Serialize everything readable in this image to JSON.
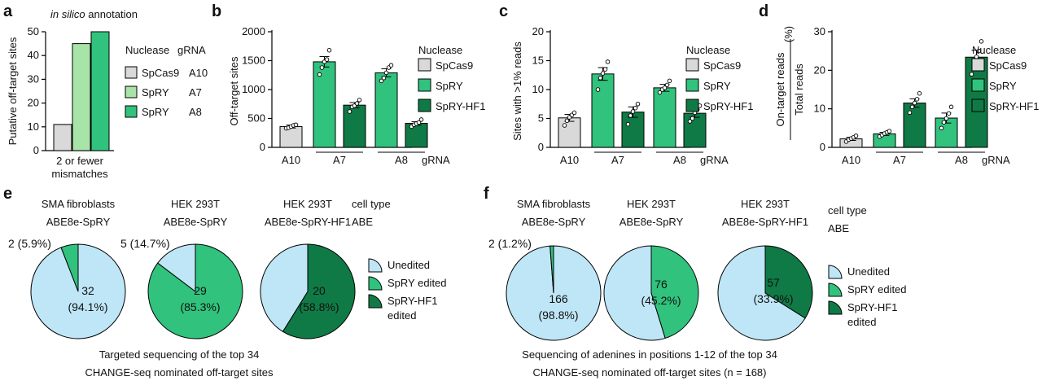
{
  "colors": {
    "spcas9": "#d9d9d9",
    "spry": "#31c27d",
    "spry_light": "#a8e3a8",
    "sprhf1": "#0f7a45",
    "unedited": "#bfe6f7",
    "axis": "#000000"
  },
  "panels": {
    "a": {
      "letter": "a",
      "subtitle_italic": "in silico",
      "subtitle_rest": " annotation",
      "legend_header": [
        "Nuclease",
        "gRNA"
      ],
      "legend_rows": [
        {
          "nuclease": "SpCas9",
          "grna": "A10"
        },
        {
          "nuclease": "SpRY",
          "grna": "A7"
        },
        {
          "nuclease": "SpRY",
          "grna": "A8"
        }
      ]
    },
    "b": {
      "letter": "b",
      "legend_header": "Nuclease",
      "legend": [
        "SpCas9",
        "SpRY",
        "SpRY-HF1"
      ]
    },
    "c": {
      "letter": "c",
      "legend_header": "Nuclease",
      "legend": [
        "SpCas9",
        "SpRY",
        "SpRY-HF1"
      ]
    },
    "d": {
      "letter": "d",
      "legend_header": "Nuclease",
      "legend": [
        "SpCas9",
        "SpRY",
        "SpRY-HF1"
      ]
    },
    "e": {
      "letter": "e",
      "headers": [
        [
          "SMA fibroblasts",
          "ABE8e-SpRY"
        ],
        [
          "HEK 293T",
          "ABE8e-SpRY"
        ],
        [
          "HEK 293T",
          "ABE8e-SpRY-HF1"
        ]
      ],
      "row_labels": [
        "cell type",
        "ABE"
      ],
      "legend": [
        "Unedited",
        "SpRY edited",
        "SpRY-HF1",
        "edited"
      ],
      "caption": [
        "Targeted sequencing of the top 34",
        "CHANGE-seq nominated off-target sites"
      ]
    },
    "f": {
      "letter": "f",
      "headers": [
        [
          "SMA fibroblasts",
          "ABE8e-SpRY"
        ],
        [
          "HEK 293T",
          "ABE8e-SpRY"
        ],
        [
          "HEK 293T",
          "ABE8e-SpRY-HF1"
        ]
      ],
      "row_labels": [
        "cell type",
        "ABE"
      ],
      "legend": [
        "Unedited",
        "SpRY edited",
        "SpRY-HF1",
        "edited"
      ],
      "caption": [
        "Sequencing of adenines in positions 1-12 of the top 34",
        "CHANGE-seq nominated off-target sites (n = 168)"
      ]
    }
  },
  "chart_data": [
    {
      "panel": "a",
      "type": "bar",
      "ylabel": "Putative off-target sites",
      "ylim": [
        0,
        50
      ],
      "yticks": [
        0,
        10,
        20,
        30,
        40,
        50
      ],
      "xlabel_lines": [
        "2 or fewer",
        "mismatches"
      ],
      "series": [
        {
          "name": "SpCas9 A10",
          "values": [
            11
          ]
        },
        {
          "name": "SpRY A7",
          "values": [
            45
          ]
        },
        {
          "name": "SpRY A8",
          "values": [
            50
          ]
        }
      ]
    },
    {
      "panel": "b",
      "type": "bar",
      "ylabel": "Off-target sites",
      "ylim": [
        0,
        2000
      ],
      "yticks": [
        0,
        500,
        1000,
        1500,
        2000
      ],
      "groups": [
        "A10",
        "A7",
        "A8"
      ],
      "xlabel": "gRNA",
      "bars": [
        {
          "group": "A10",
          "nuclease": "SpCas9",
          "value": 360,
          "sem": 25,
          "points": [
            330,
            340,
            360,
            380,
            390
          ]
        },
        {
          "group": "A7",
          "nuclease": "SpRY",
          "value": 1480,
          "sem": 90,
          "points": [
            1260,
            1380,
            1480,
            1520,
            1680
          ]
        },
        {
          "group": "A7",
          "nuclease": "SpRY-HF1",
          "value": 730,
          "sem": 45,
          "points": [
            620,
            700,
            720,
            760,
            820
          ]
        },
        {
          "group": "A8",
          "nuclease": "SpRY",
          "value": 1290,
          "sem": 70,
          "points": [
            1150,
            1200,
            1290,
            1380,
            1420
          ]
        },
        {
          "group": "A8",
          "nuclease": "SpRY-HF1",
          "value": 415,
          "sem": 30,
          "points": [
            360,
            390,
            410,
            430,
            480
          ]
        }
      ]
    },
    {
      "panel": "c",
      "type": "bar",
      "ylabel": "Sites with >1% reads",
      "ylim": [
        0,
        20
      ],
      "yticks": [
        0,
        5,
        10,
        15,
        20
      ],
      "groups": [
        "A10",
        "A7",
        "A8"
      ],
      "xlabel": "gRNA",
      "bars": [
        {
          "group": "A10",
          "nuclease": "SpCas9",
          "value": 5.1,
          "sem": 0.6,
          "points": [
            3.8,
            4.6,
            5.2,
            5.6,
            6.0
          ]
        },
        {
          "group": "A7",
          "nuclease": "SpRY",
          "value": 12.7,
          "sem": 1.1,
          "points": [
            10.0,
            12.0,
            12.8,
            13.5,
            14.8
          ]
        },
        {
          "group": "A7",
          "nuclease": "SpRY-HF1",
          "value": 6.1,
          "sem": 0.9,
          "points": [
            4.0,
            5.5,
            6.2,
            6.8,
            7.5
          ]
        },
        {
          "group": "A8",
          "nuclease": "SpRY",
          "value": 10.3,
          "sem": 0.6,
          "points": [
            9.5,
            10.0,
            10.3,
            10.8,
            11.5
          ]
        },
        {
          "group": "A8",
          "nuclease": "SpRY-HF1",
          "value": 5.9,
          "sem": 0.7,
          "points": [
            4.5,
            5.0,
            6.0,
            6.5,
            7.2
          ]
        }
      ]
    },
    {
      "panel": "d",
      "type": "bar",
      "ylabel_top": "On-target reads",
      "ylabel_bottom": "Total reads",
      "ylabel_unit": "(%)",
      "ylim": [
        0,
        30
      ],
      "yticks": [
        0,
        10,
        20,
        30
      ],
      "groups": [
        "A10",
        "A7",
        "A8"
      ],
      "xlabel": "gRNA",
      "bars": [
        {
          "group": "A10",
          "nuclease": "SpCas9",
          "value": 2.2,
          "sem": 0.4,
          "points": [
            1.5,
            2.0,
            2.3,
            2.6,
            3.0
          ]
        },
        {
          "group": "A7",
          "nuclease": "SpRY",
          "value": 3.5,
          "sem": 0.4,
          "points": [
            2.8,
            3.2,
            3.6,
            3.9,
            4.2
          ]
        },
        {
          "group": "A7",
          "nuclease": "SpRY-HF1",
          "value": 11.5,
          "sem": 1.1,
          "points": [
            9.0,
            10.5,
            11.5,
            12.5,
            14.0
          ]
        },
        {
          "group": "A8",
          "nuclease": "SpRY",
          "value": 7.6,
          "sem": 1.3,
          "points": [
            5.0,
            6.5,
            7.5,
            8.8,
            10.5
          ]
        },
        {
          "group": "A8",
          "nuclease": "SpRY-HF1",
          "value": 23.4,
          "sem": 1.8,
          "points": [
            19.0,
            21.5,
            23.5,
            25.0,
            27.5
          ]
        }
      ]
    },
    {
      "panel": "e",
      "type": "pie",
      "pies": [
        {
          "slices": [
            {
              "name": "Unedited",
              "value": 32,
              "label": "32",
              "pct": "(94.1%)"
            },
            {
              "name": "SpRY edited",
              "value": 2,
              "label": "2 (5.9%)"
            }
          ]
        },
        {
          "slices": [
            {
              "name": "SpRY edited",
              "value": 29,
              "label": "29",
              "pct": "(85.3%)"
            },
            {
              "name": "Unedited",
              "value": 5,
              "label": "5 (14.7%)"
            }
          ]
        },
        {
          "slices": [
            {
              "name": "SpRY-HF1 edited",
              "value": 20,
              "label": "20",
              "pct": "(58.8%)"
            },
            {
              "name": "Unedited",
              "value": 14
            }
          ]
        }
      ]
    },
    {
      "panel": "f",
      "type": "pie",
      "pies": [
        {
          "slices": [
            {
              "name": "Unedited",
              "value": 166,
              "label": "166",
              "pct": "(98.8%)"
            },
            {
              "name": "SpRY edited",
              "value": 2,
              "label": "2 (1.2%)"
            }
          ]
        },
        {
          "slices": [
            {
              "name": "SpRY edited",
              "value": 76,
              "label": "76",
              "pct": "(45.2%)"
            },
            {
              "name": "Unedited",
              "value": 92
            }
          ]
        },
        {
          "slices": [
            {
              "name": "SpRY-HF1 edited",
              "value": 57,
              "label": "57",
              "pct": "(33.9%)"
            },
            {
              "name": "Unedited",
              "value": 111
            }
          ]
        }
      ]
    }
  ]
}
